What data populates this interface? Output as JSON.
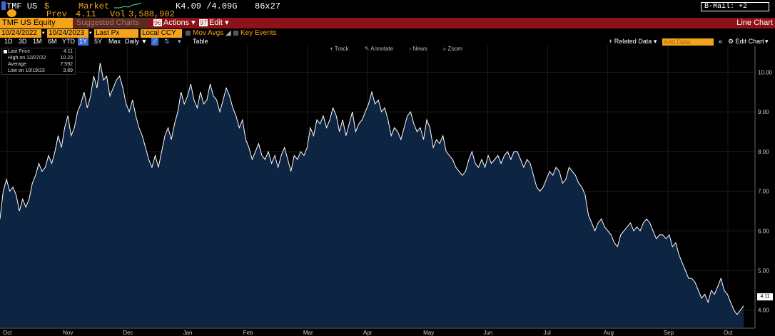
{
  "header": {
    "ticker": "TMF US",
    "currency": "$",
    "market": "Market",
    "quote": "K4.09 /4.09G",
    "size": "86x27",
    "prev_label": "Prev",
    "prev_value": "4.11",
    "vol_label": "Vol",
    "vol_value": "3,588,902",
    "b_mail": "B-Mail: +2"
  },
  "menu": {
    "security": "TMF US Equity",
    "suggested": "Suggested Charts",
    "actions_num": "96",
    "actions": "Actions",
    "edit_num": "97",
    "edit": "Edit",
    "title": "Line Chart"
  },
  "controls": {
    "start_date": "10/24/2022",
    "end_date": "10/24/2023",
    "field": "Last Px",
    "currency": "Local CCY",
    "mov_avgs": "Mov Avgs",
    "key_events": "Key Events",
    "ranges": [
      "1D",
      "3D",
      "1M",
      "6M",
      "YTD",
      "1Y",
      "5Y",
      "Max"
    ],
    "selected_range": "1Y",
    "frequency": "Daily",
    "table": "Table",
    "related": "Related Data",
    "add_data": "Add Data",
    "edit_chart": "Edit Chart"
  },
  "toolbar": {
    "track": "Track",
    "annotate": "Annotate",
    "news": "News",
    "zoom": "Zoom"
  },
  "legend": {
    "last_label": "Last Price",
    "last_value": "4.11",
    "high_label": "High on 12/07/22",
    "high_value": "10.23",
    "avg_label": "Average",
    "avg_value": "7.592",
    "low_label": "Low on 10/19/23",
    "low_value": "3.89"
  },
  "colors": {
    "background": "#000000",
    "accent": "#f4a41c",
    "menu_bar": "#8b1319",
    "area_fill": "#0d2442",
    "line": "#ffffff"
  },
  "chart_data": {
    "type": "area",
    "series": [
      {
        "values": [
          6.3,
          7.0,
          7.3,
          7.0,
          7.1,
          6.9,
          6.5,
          6.8,
          6.6,
          6.8,
          7.2,
          7.4,
          7.7,
          7.5,
          7.6,
          7.9,
          7.7,
          8.0,
          8.4,
          8.1,
          8.6,
          8.9,
          8.4,
          8.6,
          9.0,
          9.2,
          9.5,
          9.1,
          9.4,
          9.9,
          9.6,
          10.23,
          9.8,
          9.9,
          9.4,
          9.6,
          9.8,
          9.9,
          9.6,
          9.2,
          9.0,
          9.3,
          8.9,
          8.6,
          8.4,
          8.1,
          7.8,
          7.6,
          7.9,
          7.6,
          8.0,
          8.4,
          8.6,
          8.3,
          8.7,
          9.0,
          9.5,
          9.2,
          9.4,
          9.7,
          9.3,
          9.1,
          9.5,
          9.2,
          9.3,
          9.7,
          9.4,
          9.3,
          9.0,
          9.3,
          9.6,
          9.4,
          9.1,
          8.9,
          8.6,
          8.8,
          8.3,
          8.1,
          7.8,
          8.0,
          8.2,
          7.9,
          7.8,
          8.0,
          7.7,
          7.9,
          7.6,
          7.9,
          8.1,
          7.8,
          7.5,
          7.9,
          7.8,
          8.0,
          7.9,
          8.1,
          8.6,
          8.4,
          8.8,
          8.7,
          8.9,
          8.6,
          8.8,
          9.1,
          8.9,
          8.5,
          8.8,
          8.4,
          8.7,
          9.0,
          8.5,
          8.7,
          8.8,
          9.0,
          9.2,
          9.5,
          9.2,
          9.3,
          9.0,
          9.1,
          8.8,
          8.4,
          8.6,
          8.5,
          8.3,
          8.6,
          8.9,
          9.0,
          8.7,
          8.5,
          8.6,
          8.3,
          8.8,
          8.6,
          8.1,
          8.3,
          8.2,
          8.4,
          8.0,
          7.9,
          7.8,
          7.6,
          7.5,
          7.4,
          7.5,
          7.8,
          8.0,
          7.7,
          7.6,
          7.8,
          7.6,
          7.9,
          7.7,
          7.8,
          7.9,
          7.7,
          7.9,
          8.0,
          7.8,
          8.0,
          8.0,
          7.8,
          7.6,
          7.8,
          7.7,
          7.4,
          7.1,
          7.0,
          7.1,
          7.3,
          7.5,
          7.4,
          7.6,
          7.5,
          7.2,
          7.3,
          7.6,
          7.5,
          7.4,
          7.2,
          7.1,
          6.9,
          6.4,
          6.2,
          6.0,
          6.2,
          6.3,
          6.1,
          6.0,
          5.9,
          5.7,
          5.6,
          5.9,
          6.0,
          6.1,
          6.2,
          6.0,
          6.1,
          6.0,
          6.2,
          6.3,
          6.2,
          6.0,
          5.8,
          5.9,
          5.9,
          5.8,
          5.9,
          5.6,
          5.7,
          5.4,
          5.2,
          5.0,
          4.8,
          4.8,
          4.7,
          4.5,
          4.3,
          4.4,
          4.2,
          4.5,
          4.4,
          4.6,
          4.8,
          4.5,
          4.4,
          4.2,
          4.0,
          3.89,
          4.0,
          4.11
        ]
      }
    ],
    "x_ticks": [
      "Oct",
      "Nov",
      "Dec",
      "Jan",
      "Feb",
      "Mar",
      "Apr",
      "May",
      "Jun",
      "Jul",
      "Aug",
      "Sep",
      "Oct"
    ],
    "y_ticks": [
      "4.00",
      "5.00",
      "6.00",
      "7.00",
      "8.00",
      "9.00",
      "10.00"
    ],
    "ylim": [
      3.6,
      10.6
    ],
    "last_value_label": "4.11",
    "grid": true
  }
}
